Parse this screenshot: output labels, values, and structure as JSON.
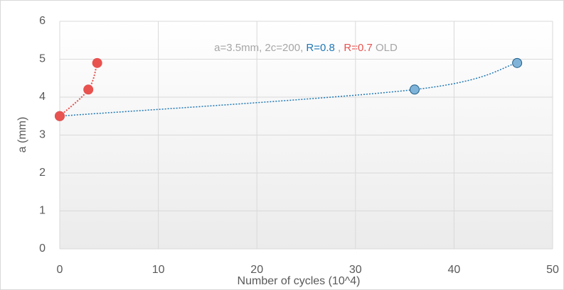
{
  "chart_data": {
    "type": "scatter",
    "annotation": {
      "prefix": "a=3.5mm, 2c=200,",
      "separator": ",",
      "suffix": "OLD",
      "color": "#a6a6a6"
    },
    "xlabel": "Number of cycles  (10^4)",
    "ylabel": "a (mm)",
    "series": [
      {
        "name": "R=0.8",
        "color": "#1f77b4",
        "marker_fill": "#7fb3d8",
        "x": [
          0,
          36,
          46.4
        ],
        "values": [
          3.5,
          4.2,
          4.9
        ]
      },
      {
        "name": "R=0.7",
        "color": "#e8524f",
        "marker_fill": "#e8524f",
        "x": [
          0,
          2.9,
          3.8
        ],
        "values": [
          3.5,
          4.2,
          4.9
        ]
      }
    ],
    "xlim": [
      0,
      50
    ],
    "xticks": [
      0,
      10,
      20,
      30,
      40,
      50
    ],
    "ylim": [
      0,
      6
    ],
    "yticks": [
      0,
      1,
      2,
      3,
      4,
      5,
      6
    ],
    "grid": true
  }
}
